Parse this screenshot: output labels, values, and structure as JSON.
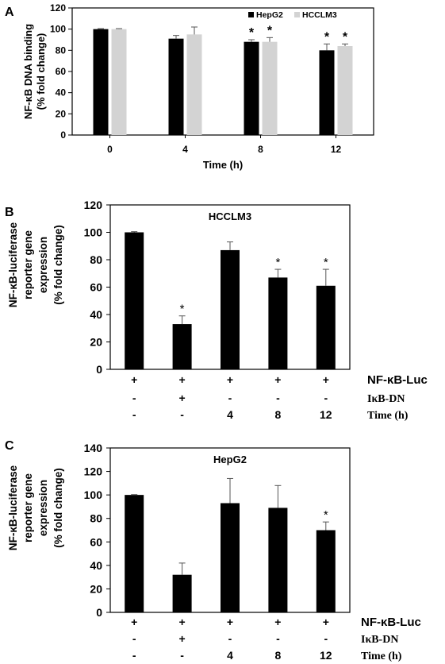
{
  "chart_data": [
    {
      "panel": "A",
      "type": "bar",
      "ylabel": [
        "NF-κB DNA binding",
        "(% fold change)"
      ],
      "xlabel": "Time (h)",
      "categories": [
        "0",
        "4",
        "8",
        "12"
      ],
      "ylim": [
        0,
        120
      ],
      "yticks": [
        "0",
        "20",
        "40",
        "60",
        "80",
        "100",
        "120"
      ],
      "series": [
        {
          "name": "HepG2",
          "color": "#000000",
          "values": [
            100,
            91,
            88,
            80
          ],
          "errors": [
            0.5,
            3,
            2,
            6
          ],
          "stars": [
            false,
            false,
            true,
            true
          ]
        },
        {
          "name": "HCCLM3",
          "color": "#d3d3d3",
          "values": [
            100,
            95,
            88,
            84
          ],
          "errors": [
            0.5,
            7,
            4,
            2
          ],
          "stars": [
            false,
            false,
            true,
            true
          ]
        }
      ],
      "star_symbol": "*"
    },
    {
      "panel": "B",
      "type": "bar",
      "title": "HCCLM3",
      "ylabel": [
        "NF-κB-luciferase",
        "reporter gene",
        "expression",
        "(% fold change)"
      ],
      "ylim": [
        0,
        120
      ],
      "yticks": [
        "0",
        "20",
        "40",
        "60",
        "80",
        "100",
        "120"
      ],
      "values": [
        100,
        33,
        87,
        67,
        61
      ],
      "errors": [
        0.5,
        6,
        6,
        6,
        12
      ],
      "stars": [
        false,
        true,
        false,
        true,
        true
      ],
      "star_symbol": "*",
      "conditions": [
        {
          "label": "NF-κB-Luc",
          "values": [
            "+",
            "+",
            "+",
            "+",
            "+"
          ]
        },
        {
          "label": "IκB-DN",
          "values": [
            "-",
            "+",
            "-",
            "-",
            "-"
          ]
        },
        {
          "label": "Time (h)",
          "values": [
            "-",
            "-",
            "4",
            "8",
            "12"
          ]
        }
      ]
    },
    {
      "panel": "C",
      "type": "bar",
      "title": "HepG2",
      "ylabel": [
        "NF-κB-luciferase",
        "reporter gene",
        "expression",
        "(% fold change)"
      ],
      "ylim": [
        0,
        140
      ],
      "yticks": [
        "0",
        "20",
        "40",
        "60",
        "80",
        "100",
        "120",
        "140"
      ],
      "values": [
        100,
        32,
        93,
        89,
        70
      ],
      "errors": [
        0.3,
        10,
        21,
        19,
        7
      ],
      "stars": [
        false,
        false,
        false,
        false,
        true
      ],
      "star_symbol": "*",
      "conditions": [
        {
          "label": "NF-κB-Luc",
          "values": [
            "+",
            "+",
            "+",
            "+",
            "+"
          ]
        },
        {
          "label": "IκB-DN",
          "values": [
            "-",
            "+",
            "-",
            "-",
            "-"
          ]
        },
        {
          "label": "Time (h)",
          "values": [
            "-",
            "-",
            "4",
            "8",
            "12"
          ]
        }
      ]
    }
  ]
}
